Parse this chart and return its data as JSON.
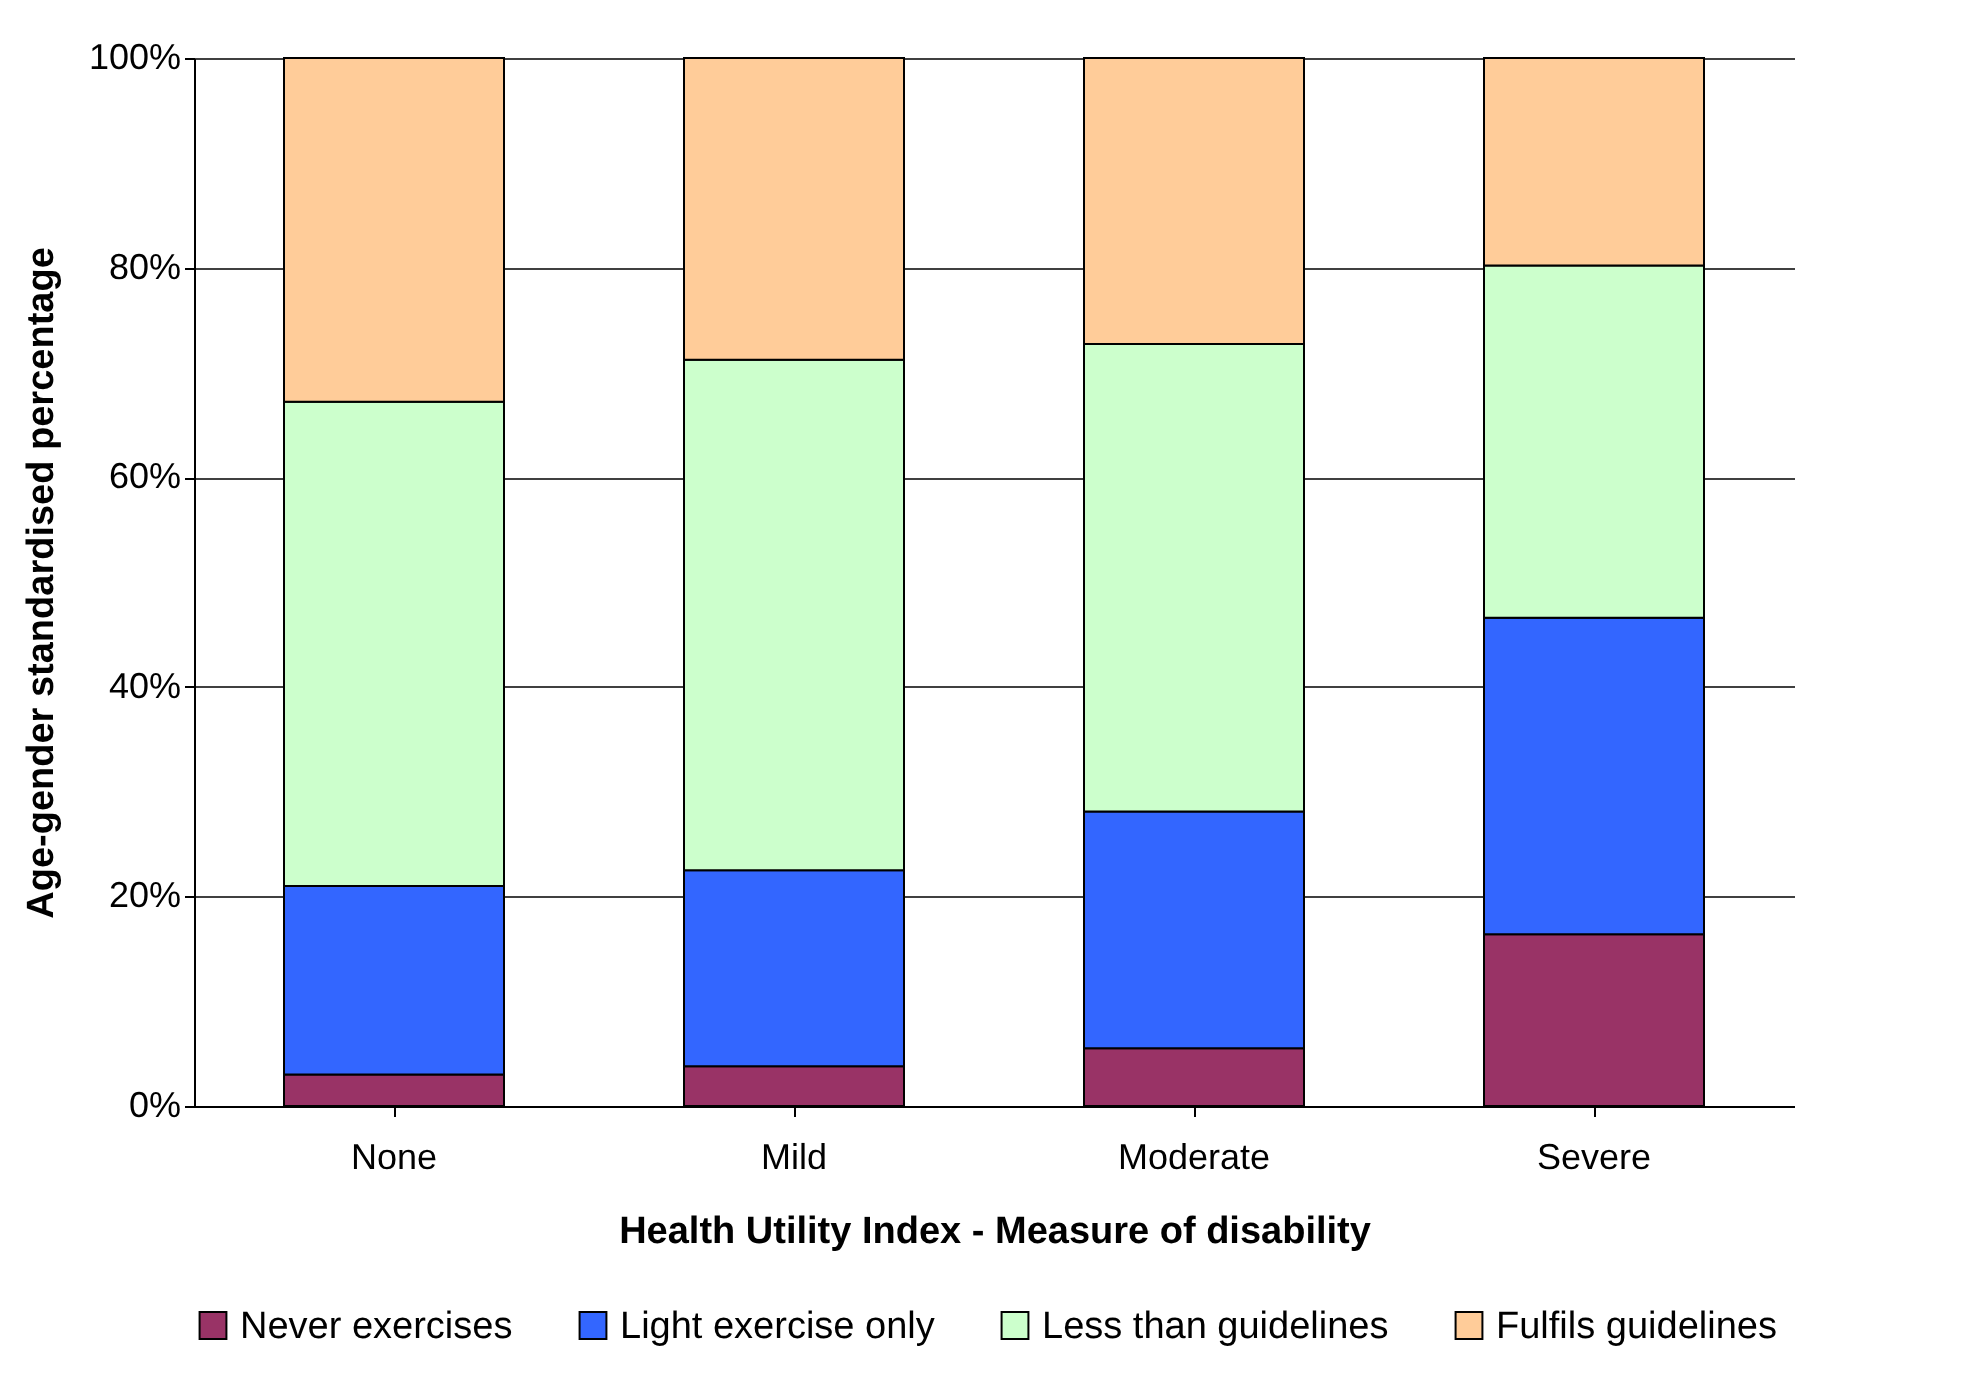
{
  "chart_data": {
    "type": "bar",
    "stacked": true,
    "xlabel": "Health Utility Index - Measure of disability",
    "ylabel": "Age-gender standardised percentage",
    "categories": [
      "None",
      "Mild",
      "Moderate",
      "Severe"
    ],
    "series": [
      {
        "name": "Never exercises",
        "color": "#993366",
        "values": [
          3,
          3.8,
          5.5,
          16.4
        ]
      },
      {
        "name": "Light exercise only",
        "color": "#3366ff",
        "values": [
          18,
          18.7,
          22.6,
          30.2
        ]
      },
      {
        "name": "Less than guidelines",
        "color": "#ccffcc",
        "values": [
          46.2,
          48.7,
          44.6,
          33.6
        ]
      },
      {
        "name": "Fulfils guidelines",
        "color": "#ffcc99",
        "values": [
          32.8,
          28.8,
          27.3,
          19.8
        ]
      }
    ],
    "ylim": [
      0,
      100
    ],
    "yticks": [
      {
        "value": 0,
        "label": "0%"
      },
      {
        "value": 20,
        "label": "20%"
      },
      {
        "value": 40,
        "label": "40%"
      },
      {
        "value": 60,
        "label": "60%"
      },
      {
        "value": 80,
        "label": "80%"
      },
      {
        "value": 100,
        "label": "100%"
      }
    ],
    "grid": "y",
    "legend": "bottom"
  }
}
